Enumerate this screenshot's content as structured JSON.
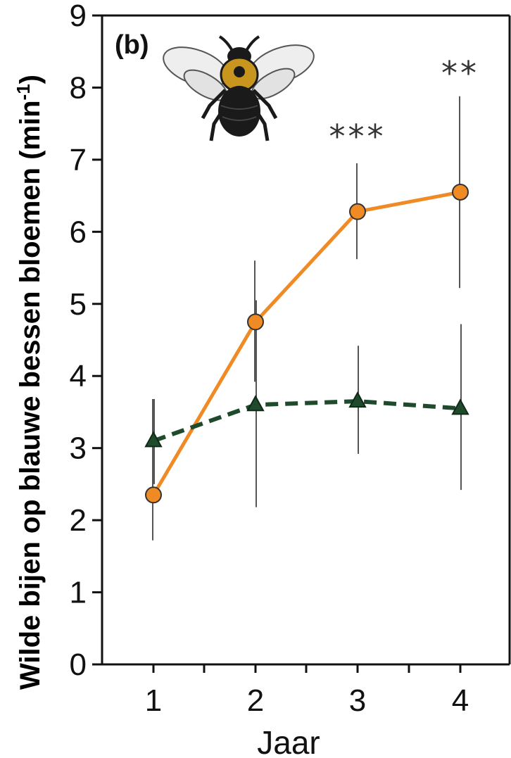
{
  "chart_data": {
    "type": "line",
    "panel_label": "(b)",
    "xlabel": "Jaar",
    "ylabel": "Wilde bijen op blauwe bessen bloemen (min",
    "ylabel_sup": "-1",
    "ylabel_close": ")",
    "x": [
      1,
      2,
      3,
      4
    ],
    "x_ticks": [
      "1",
      "2",
      "3",
      "4"
    ],
    "ylim": [
      0,
      9
    ],
    "y_ticks": [
      "0",
      "1",
      "2",
      "3",
      "4",
      "5",
      "6",
      "7",
      "8",
      "9"
    ],
    "grid": false,
    "series": [
      {
        "style": "solid",
        "marker": "circle",
        "color": "#f08a24",
        "values": [
          2.35,
          4.75,
          6.28,
          6.55
        ],
        "error_low": [
          1.72,
          3.92,
          5.62,
          5.22
        ],
        "error_high": [
          3.68,
          5.6,
          6.95,
          7.88
        ]
      },
      {
        "style": "dashed",
        "marker": "triangle",
        "color": "#1f4a2c",
        "values": [
          3.1,
          3.6,
          3.65,
          3.55
        ],
        "error_low": [
          2.5,
          2.18,
          2.92,
          2.42
        ],
        "error_high": [
          3.68,
          5.05,
          4.42,
          4.72
        ]
      }
    ],
    "annotations": [
      {
        "x": 3,
        "text": "***"
      },
      {
        "x": 4,
        "text": "**"
      }
    ],
    "illustration": "bumblebee-icon",
    "colors": {
      "bee_body": "#1a1a1a",
      "bee_band": "#c8961e",
      "wing": "#e8e8e8"
    }
  }
}
